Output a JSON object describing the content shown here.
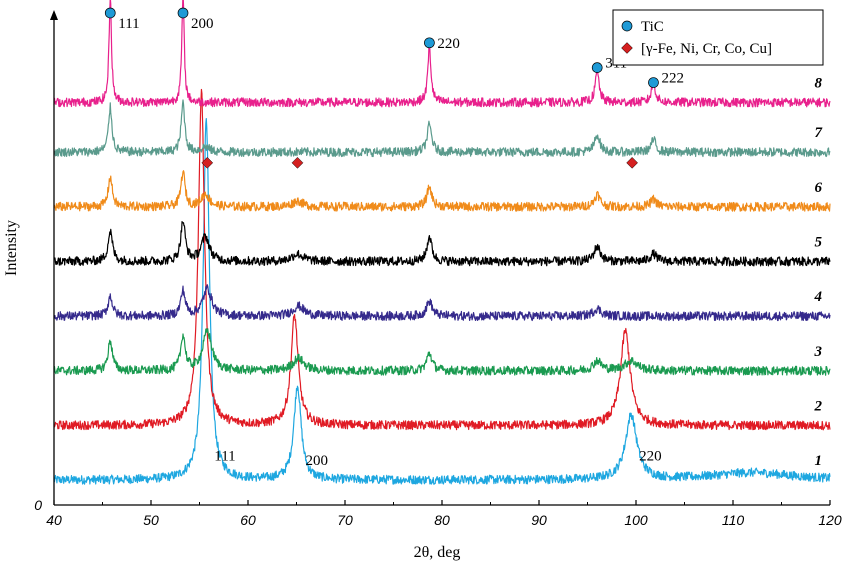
{
  "chart_data": {
    "type": "line",
    "title": "",
    "xlabel": "2θ, deg",
    "ylabel": "Intensity",
    "xlim": [
      40,
      120
    ],
    "x_ticks": [
      "40",
      "50",
      "60",
      "70",
      "80",
      "90",
      "100",
      "110",
      "120"
    ],
    "y_origin_label": "0",
    "grid": false,
    "legend_placement": "top-right",
    "legend": [
      {
        "label": "TiC",
        "marker": "circle",
        "color": "#1e9ad6"
      },
      {
        "label": "[γ-Fe, Ni, Cr, Co, Cu]",
        "marker": "diamond",
        "color": "#d42020"
      }
    ],
    "series": [
      {
        "name": "1",
        "color": "#1ea7e0",
        "baseline": 0.05,
        "peaks": [
          {
            "x": 55.7,
            "h": 0.73,
            "w": 0.38
          },
          {
            "x": 65.1,
            "h": 0.19,
            "w": 0.45
          },
          {
            "x": 99.5,
            "h": 0.13,
            "w": 0.7
          },
          {
            "x": 112,
            "h": 0.015,
            "w": 5
          }
        ]
      },
      {
        "name": "2",
        "color": "#e01b24",
        "baseline": 0.16,
        "peaks": [
          {
            "x": 55.2,
            "h": 0.67,
            "w": 0.38
          },
          {
            "x": 64.8,
            "h": 0.22,
            "w": 0.45
          },
          {
            "x": 98.9,
            "h": 0.19,
            "w": 0.6
          }
        ]
      },
      {
        "name": "3",
        "color": "#1a9a50",
        "baseline": 0.27,
        "peaks": [
          {
            "x": 45.8,
            "h": 0.06,
            "w": 0.28
          },
          {
            "x": 53.3,
            "h": 0.07,
            "w": 0.28
          },
          {
            "x": 55.8,
            "h": 0.08,
            "w": 0.55
          },
          {
            "x": 65.2,
            "h": 0.025,
            "w": 0.7
          },
          {
            "x": 78.7,
            "h": 0.035,
            "w": 0.35
          },
          {
            "x": 96.0,
            "h": 0.02,
            "w": 0.5
          },
          {
            "x": 99.5,
            "h": 0.02,
            "w": 0.8
          }
        ]
      },
      {
        "name": "4",
        "color": "#352a8c",
        "baseline": 0.38,
        "peaks": [
          {
            "x": 45.8,
            "h": 0.04,
            "w": 0.28
          },
          {
            "x": 53.3,
            "h": 0.05,
            "w": 0.28
          },
          {
            "x": 55.8,
            "h": 0.055,
            "w": 0.55
          },
          {
            "x": 65.2,
            "h": 0.02,
            "w": 0.7
          },
          {
            "x": 78.7,
            "h": 0.03,
            "w": 0.35
          },
          {
            "x": 96.0,
            "h": 0.015,
            "w": 0.5
          }
        ]
      },
      {
        "name": "5",
        "color": "#000000",
        "baseline": 0.49,
        "peaks": [
          {
            "x": 45.8,
            "h": 0.06,
            "w": 0.28
          },
          {
            "x": 53.3,
            "h": 0.08,
            "w": 0.28
          },
          {
            "x": 55.6,
            "h": 0.05,
            "w": 0.5
          },
          {
            "x": 65.1,
            "h": 0.015,
            "w": 0.7
          },
          {
            "x": 78.7,
            "h": 0.05,
            "w": 0.3
          },
          {
            "x": 96.0,
            "h": 0.03,
            "w": 0.4
          },
          {
            "x": 101.8,
            "h": 0.015,
            "w": 0.4
          }
        ]
      },
      {
        "name": "6",
        "color": "#f08b1a",
        "baseline": 0.6,
        "peaks": [
          {
            "x": 45.8,
            "h": 0.06,
            "w": 0.25
          },
          {
            "x": 53.3,
            "h": 0.07,
            "w": 0.25
          },
          {
            "x": 55.6,
            "h": 0.025,
            "w": 0.5
          },
          {
            "x": 65.1,
            "h": 0.012,
            "w": 0.6
          },
          {
            "x": 78.7,
            "h": 0.04,
            "w": 0.3
          },
          {
            "x": 96.0,
            "h": 0.025,
            "w": 0.35
          },
          {
            "x": 101.8,
            "h": 0.015,
            "w": 0.35
          }
        ]
      },
      {
        "name": "7",
        "color": "#5a9a8c",
        "baseline": 0.71,
        "peaks": [
          {
            "x": 45.8,
            "h": 0.09,
            "w": 0.22
          },
          {
            "x": 53.3,
            "h": 0.1,
            "w": 0.22
          },
          {
            "x": 55.6,
            "h": 0.01,
            "w": 0.5
          },
          {
            "x": 78.7,
            "h": 0.055,
            "w": 0.28
          },
          {
            "x": 96.0,
            "h": 0.035,
            "w": 0.32
          },
          {
            "x": 101.8,
            "h": 0.025,
            "w": 0.3
          }
        ]
      },
      {
        "name": "8",
        "color": "#e8208c",
        "baseline": 0.81,
        "peaks": [
          {
            "x": 45.8,
            "h": 0.215,
            "w": 0.15
          },
          {
            "x": 53.3,
            "h": 0.215,
            "w": 0.15
          },
          {
            "x": 78.7,
            "h": 0.11,
            "w": 0.2
          },
          {
            "x": 96.0,
            "h": 0.06,
            "w": 0.25
          },
          {
            "x": 101.8,
            "h": 0.04,
            "w": 0.25
          }
        ]
      }
    ],
    "peak_labels": [
      {
        "text": "111",
        "x": 45.8,
        "y": 0.96
      },
      {
        "text": "200",
        "x": 53.3,
        "y": 0.96
      },
      {
        "text": "220",
        "x": 78.7,
        "y": 0.92
      },
      {
        "text": "311",
        "x": 96.0,
        "y": 0.88
      },
      {
        "text": "222",
        "x": 101.8,
        "y": 0.85
      },
      {
        "text": "111",
        "x": 55.7,
        "y": 0.09
      },
      {
        "text": "200",
        "x": 65.1,
        "y": 0.08
      },
      {
        "text": "220",
        "x": 99.5,
        "y": 0.09
      }
    ],
    "tic_markers": [
      {
        "x": 45.8,
        "y": 0.99
      },
      {
        "x": 53.3,
        "y": 0.99
      },
      {
        "x": 78.7,
        "y": 0.93
      },
      {
        "x": 96.0,
        "y": 0.88
      },
      {
        "x": 101.8,
        "y": 0.85
      }
    ],
    "fcc_markers": [
      {
        "x": 55.8,
        "y": 0.6885
      },
      {
        "x": 65.1,
        "y": 0.6885
      },
      {
        "x": 99.6,
        "y": 0.6885
      }
    ]
  }
}
